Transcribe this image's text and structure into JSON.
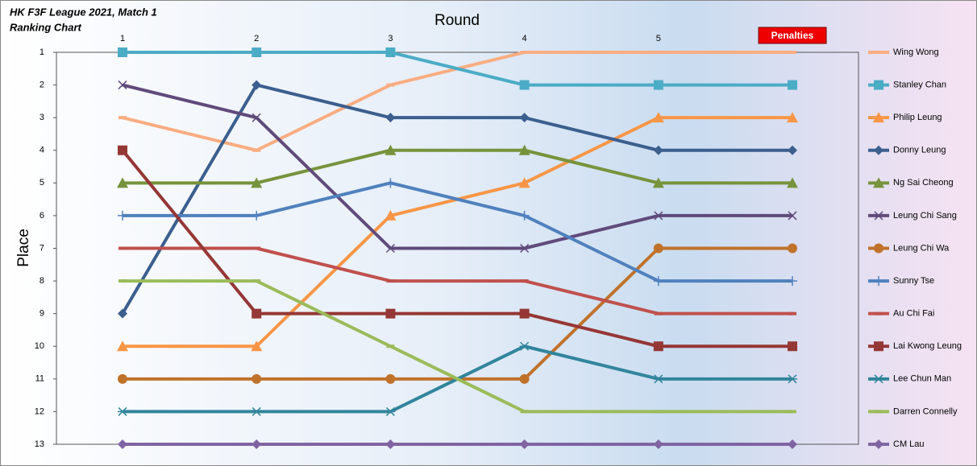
{
  "chart_data": {
    "type": "bump",
    "title": "HK F3F League 2021, Match 1",
    "subtitle": "Ranking Chart",
    "x_label": "Round",
    "y_label": "Place",
    "categories": [
      "1",
      "2",
      "3",
      "4",
      "5",
      "Penalties"
    ],
    "highlight_category_color": "#ee0000",
    "ylim": [
      13,
      1
    ],
    "yticks": [
      1,
      2,
      3,
      4,
      5,
      6,
      7,
      8,
      9,
      10,
      11,
      12,
      13
    ],
    "series": [
      {
        "name": "Wing Wong",
        "color": "#f9ad81",
        "marker": "dash",
        "values": [
          3,
          4,
          2,
          1,
          1,
          1
        ]
      },
      {
        "name": "Stanley Chan",
        "color": "#4bacc6",
        "marker": "square",
        "values": [
          1,
          1,
          1,
          2,
          2,
          2
        ]
      },
      {
        "name": "Philip Leung",
        "color": "#f79646",
        "marker": "triangle",
        "values": [
          10,
          10,
          6,
          5,
          3,
          3
        ]
      },
      {
        "name": "Donny Leung",
        "color": "#3b5f8e",
        "marker": "diamond",
        "values": [
          9,
          2,
          3,
          3,
          4,
          4
        ]
      },
      {
        "name": "Ng Sai Cheong",
        "color": "#77933c",
        "marker": "triangle",
        "values": [
          5,
          5,
          4,
          4,
          5,
          5
        ]
      },
      {
        "name": "Leung Chi Sang",
        "color": "#604a7b",
        "marker": "x",
        "values": [
          2,
          3,
          7,
          7,
          6,
          6
        ]
      },
      {
        "name": "Leung Chi Wa",
        "color": "#c0722b",
        "marker": "circle",
        "values": [
          11,
          11,
          11,
          11,
          7,
          7
        ]
      },
      {
        "name": "Sunny Tse",
        "color": "#4f81bd",
        "marker": "plus",
        "values": [
          6,
          6,
          5,
          6,
          8,
          8
        ]
      },
      {
        "name": "Au Chi Fai",
        "color": "#c0504d",
        "marker": "dash",
        "values": [
          7,
          7,
          8,
          8,
          9,
          9
        ]
      },
      {
        "name": "Lai Kwong Leung",
        "color": "#953735",
        "marker": "square",
        "values": [
          4,
          9,
          9,
          9,
          10,
          10
        ]
      },
      {
        "name": "Lee Chun Man",
        "color": "#31859c",
        "marker": "star",
        "values": [
          12,
          12,
          12,
          10,
          11,
          11
        ]
      },
      {
        "name": "Darren Connelly",
        "color": "#9bbb59",
        "marker": "dash",
        "values": [
          8,
          8,
          10,
          12,
          12,
          12
        ]
      },
      {
        "name": "CM Lau",
        "color": "#8064a2",
        "marker": "diamond",
        "values": [
          13,
          13,
          13,
          13,
          13,
          13
        ]
      }
    ]
  }
}
